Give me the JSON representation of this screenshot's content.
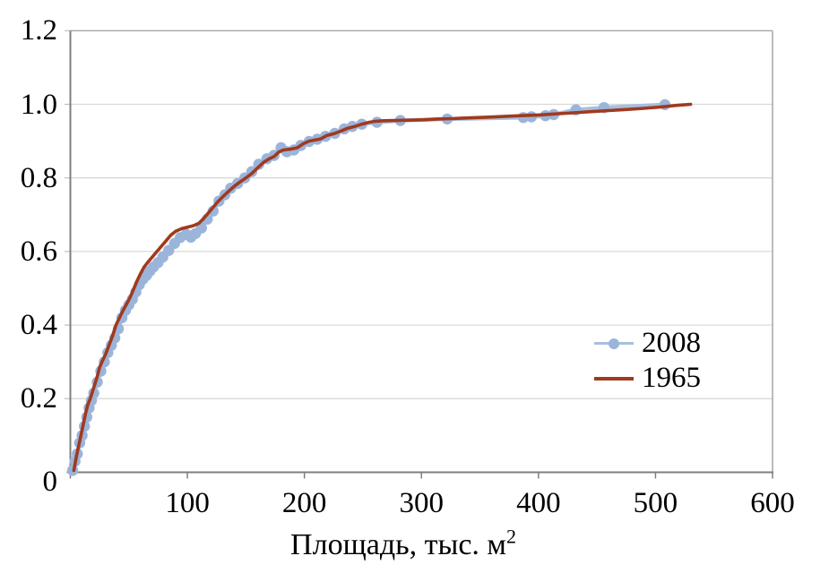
{
  "chart_data": {
    "type": "line",
    "title": "",
    "xlabel": "Площадь, тыс. м",
    "xlabel_sup": "2",
    "ylabel": "",
    "xlim": [
      0,
      600
    ],
    "ylim": [
      0,
      1.2
    ],
    "x_ticks": [
      0,
      100,
      200,
      300,
      400,
      500,
      600
    ],
    "x_tick_labels": [
      "100",
      "200",
      "300",
      "400",
      "500",
      "600"
    ],
    "y_ticks": [
      0,
      0.2,
      0.4,
      0.6,
      0.8,
      1.0,
      1.2
    ],
    "y_tick_labels": [
      "0",
      "0.2",
      "0.4",
      "0.6",
      "0.8",
      "1.0",
      "1.2"
    ],
    "grid": "horizontal",
    "legend_position": "inside-right",
    "series": [
      {
        "name": "2008",
        "type": "line-with-markers",
        "line_color": "#A7BEE0",
        "marker_color": "#9BB4DA",
        "line_width": 4.5,
        "marker_radius": 6.2,
        "points": [
          [
            2,
            0.005
          ],
          [
            4,
            0.03
          ],
          [
            6,
            0.05
          ],
          [
            8,
            0.08
          ],
          [
            10,
            0.1
          ],
          [
            12,
            0.125
          ],
          [
            14,
            0.15
          ],
          [
            16,
            0.175
          ],
          [
            18,
            0.195
          ],
          [
            20,
            0.215
          ],
          [
            23,
            0.245
          ],
          [
            26,
            0.275
          ],
          [
            29,
            0.3
          ],
          [
            32,
            0.325
          ],
          [
            35,
            0.345
          ],
          [
            38,
            0.365
          ],
          [
            41,
            0.39
          ],
          [
            44,
            0.42
          ],
          [
            47,
            0.44
          ],
          [
            50,
            0.455
          ],
          [
            53,
            0.47
          ],
          [
            56,
            0.49
          ],
          [
            59,
            0.51
          ],
          [
            62,
            0.525
          ],
          [
            65,
            0.535
          ],
          [
            68,
            0.547
          ],
          [
            71,
            0.558
          ],
          [
            75,
            0.57
          ],
          [
            79,
            0.585
          ],
          [
            84,
            0.603
          ],
          [
            89,
            0.622
          ],
          [
            94,
            0.638
          ],
          [
            99,
            0.647
          ],
          [
            103,
            0.639
          ],
          [
            107,
            0.649
          ],
          [
            112,
            0.664
          ],
          [
            117,
            0.688
          ],
          [
            122,
            0.71
          ],
          [
            127,
            0.737
          ],
          [
            132,
            0.754
          ],
          [
            137,
            0.772
          ],
          [
            143,
            0.785
          ],
          [
            149,
            0.8
          ],
          [
            155,
            0.817
          ],
          [
            161,
            0.837
          ],
          [
            168,
            0.852
          ],
          [
            174,
            0.861
          ],
          [
            180,
            0.882
          ],
          [
            185,
            0.871
          ],
          [
            191,
            0.876
          ],
          [
            197,
            0.888
          ],
          [
            204,
            0.899
          ],
          [
            211,
            0.905
          ],
          [
            218,
            0.913
          ],
          [
            226,
            0.921
          ],
          [
            234,
            0.933
          ],
          [
            241,
            0.94
          ],
          [
            249,
            0.946
          ],
          [
            262,
            0.951
          ],
          [
            282,
            0.956
          ],
          [
            322,
            0.96
          ],
          [
            387,
            0.964
          ],
          [
            394,
            0.966
          ],
          [
            406,
            0.969
          ],
          [
            413,
            0.972
          ],
          [
            432,
            0.985
          ],
          [
            456,
            0.991
          ],
          [
            508,
            0.999
          ]
        ]
      },
      {
        "name": "1965",
        "type": "line",
        "line_color": "#A03A1E",
        "marker_color": null,
        "line_width": 3.6,
        "marker_radius": 0,
        "points": [
          [
            3,
            0.005
          ],
          [
            5,
            0.04
          ],
          [
            7,
            0.07
          ],
          [
            9,
            0.1
          ],
          [
            11,
            0.13
          ],
          [
            13,
            0.16
          ],
          [
            15,
            0.185
          ],
          [
            17,
            0.2
          ],
          [
            19,
            0.22
          ],
          [
            21,
            0.24
          ],
          [
            23,
            0.26
          ],
          [
            25,
            0.285
          ],
          [
            27,
            0.3
          ],
          [
            30,
            0.32
          ],
          [
            33,
            0.345
          ],
          [
            36,
            0.37
          ],
          [
            39,
            0.4
          ],
          [
            42,
            0.42
          ],
          [
            45,
            0.44
          ],
          [
            48,
            0.457
          ],
          [
            51,
            0.475
          ],
          [
            54,
            0.497
          ],
          [
            57,
            0.52
          ],
          [
            60,
            0.54
          ],
          [
            63,
            0.558
          ],
          [
            66,
            0.57
          ],
          [
            70,
            0.585
          ],
          [
            74,
            0.6
          ],
          [
            78,
            0.615
          ],
          [
            82,
            0.63
          ],
          [
            86,
            0.645
          ],
          [
            90,
            0.655
          ],
          [
            95,
            0.662
          ],
          [
            100,
            0.666
          ],
          [
            105,
            0.67
          ],
          [
            110,
            0.677
          ],
          [
            114,
            0.69
          ],
          [
            118,
            0.705
          ],
          [
            122,
            0.72
          ],
          [
            126,
            0.735
          ],
          [
            130,
            0.748
          ],
          [
            135,
            0.763
          ],
          [
            140,
            0.777
          ],
          [
            145,
            0.789
          ],
          [
            150,
            0.8
          ],
          [
            155,
            0.812
          ],
          [
            160,
            0.827
          ],
          [
            165,
            0.842
          ],
          [
            170,
            0.852
          ],
          [
            174,
            0.858
          ],
          [
            178,
            0.87
          ],
          [
            182,
            0.876
          ],
          [
            188,
            0.878
          ],
          [
            194,
            0.882
          ],
          [
            199,
            0.893
          ],
          [
            204,
            0.9
          ],
          [
            209,
            0.903
          ],
          [
            214,
            0.906
          ],
          [
            219,
            0.915
          ],
          [
            225,
            0.92
          ],
          [
            231,
            0.927
          ],
          [
            237,
            0.935
          ],
          [
            243,
            0.94
          ],
          [
            249,
            0.946
          ],
          [
            255,
            0.951
          ],
          [
            261,
            0.954
          ],
          [
            268,
            0.9555
          ],
          [
            278,
            0.956
          ],
          [
            290,
            0.957
          ],
          [
            302,
            0.958
          ],
          [
            314,
            0.96
          ],
          [
            326,
            0.961
          ],
          [
            340,
            0.963
          ],
          [
            355,
            0.965
          ],
          [
            370,
            0.967
          ],
          [
            385,
            0.969
          ],
          [
            400,
            0.971
          ],
          [
            415,
            0.974
          ],
          [
            430,
            0.977
          ],
          [
            445,
            0.98
          ],
          [
            460,
            0.983
          ],
          [
            475,
            0.986
          ],
          [
            490,
            0.989
          ],
          [
            505,
            0.993
          ],
          [
            518,
            0.997
          ],
          [
            530,
            1.0
          ]
        ]
      }
    ],
    "colors": {
      "gridline": "#D9D9D9",
      "axis": "#7F7F7F",
      "border": "#A6A6A6",
      "y_minor_tick": "#BFBFBF",
      "text": "#000000",
      "background": "#FFFFFF"
    }
  },
  "legend": {
    "items": [
      {
        "label": "2008",
        "swatch": "blue-line-with-dot"
      },
      {
        "label": "1965",
        "swatch": "red-line"
      }
    ]
  }
}
